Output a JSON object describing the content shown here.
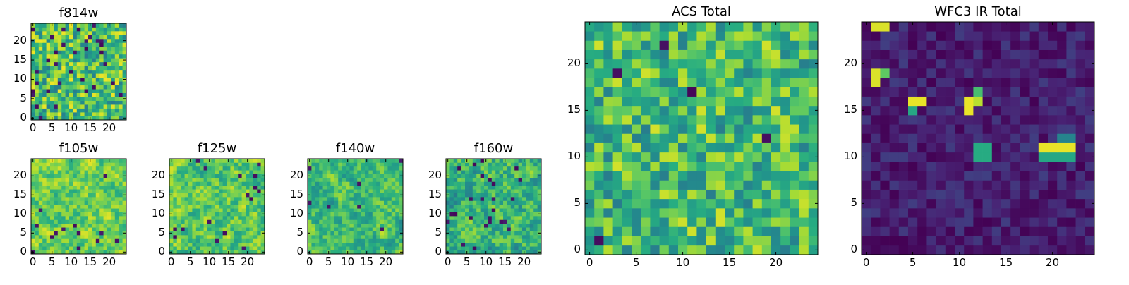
{
  "chart_data": [
    {
      "type": "heatmap",
      "title": "f814w",
      "grid_size": [
        25,
        25
      ],
      "colormap": "viridis",
      "xlim": [
        -0.5,
        24.5
      ],
      "ylim": [
        -0.5,
        24.5
      ],
      "xticks": [
        0,
        5,
        10,
        15,
        20
      ],
      "yticks": [
        0,
        5,
        10,
        15,
        20
      ],
      "value_description": "uniform-like noise, mostly green/yellow with scattered dark pixels",
      "seed": 11,
      "mean": 0.7,
      "spread": 0.28,
      "dark_fraction": 0.06,
      "smooth": 0
    },
    {
      "type": "heatmap",
      "title": "f105w",
      "grid_size": [
        25,
        25
      ],
      "colormap": "viridis",
      "xlim": [
        -0.5,
        24.5
      ],
      "ylim": [
        -0.5,
        24.5
      ],
      "xticks": [
        0,
        5,
        10,
        15,
        20
      ],
      "yticks": [
        0,
        5,
        10,
        15,
        20
      ],
      "value_description": "smooth correlated noise, mostly yellow-green with few dark pixels",
      "seed": 23,
      "mean": 0.78,
      "spread": 0.3,
      "dark_fraction": 0.015,
      "smooth": 1
    },
    {
      "type": "heatmap",
      "title": "f125w",
      "grid_size": [
        25,
        25
      ],
      "colormap": "viridis",
      "xlim": [
        -0.5,
        24.5
      ],
      "ylim": [
        -0.5,
        24.5
      ],
      "xticks": [
        0,
        5,
        10,
        15,
        20
      ],
      "yticks": [
        0,
        5,
        10,
        15,
        20
      ],
      "value_description": "smooth correlated noise, yellow-green with dark specks",
      "seed": 37,
      "mean": 0.74,
      "spread": 0.32,
      "dark_fraction": 0.03,
      "smooth": 1
    },
    {
      "type": "heatmap",
      "title": "f140w",
      "grid_size": [
        25,
        25
      ],
      "colormap": "viridis",
      "xlim": [
        -0.5,
        24.5
      ],
      "ylim": [
        -0.5,
        24.5
      ],
      "xticks": [
        0,
        5,
        10,
        15,
        20
      ],
      "yticks": [
        0,
        5,
        10,
        15,
        20
      ],
      "value_description": "smooth correlated noise, green-teal with a few dark pixels",
      "seed": 51,
      "mean": 0.68,
      "spread": 0.3,
      "dark_fraction": 0.01,
      "smooth": 1
    },
    {
      "type": "heatmap",
      "title": "f160w",
      "grid_size": [
        25,
        25
      ],
      "colormap": "viridis",
      "xlim": [
        -0.5,
        24.5
      ],
      "ylim": [
        -0.5,
        24.5
      ],
      "xticks": [
        0,
        5,
        10,
        15,
        20
      ],
      "yticks": [
        0,
        5,
        10,
        15,
        20
      ],
      "value_description": "smooth correlated noise, teal-green with dark specks",
      "seed": 67,
      "mean": 0.66,
      "spread": 0.34,
      "dark_fraction": 0.03,
      "smooth": 1
    },
    {
      "type": "heatmap",
      "title": "ACS Total",
      "grid_size": [
        25,
        25
      ],
      "colormap": "viridis",
      "xlim": [
        -0.5,
        24.5
      ],
      "ylim": [
        -0.5,
        24.5
      ],
      "xticks": [
        0,
        5,
        10,
        15,
        20
      ],
      "yticks": [
        0,
        5,
        10,
        15,
        20
      ],
      "value_description": "pixel noise, mostly green with yellow and scattered dark pixels",
      "seed": 79,
      "mean": 0.68,
      "spread": 0.26,
      "dark_fraction": 0.018,
      "smooth": 0
    },
    {
      "type": "heatmap",
      "title": "WFC3 IR Total",
      "grid_size": [
        25,
        25
      ],
      "colormap": "viridis",
      "xlim": [
        -0.5,
        24.5
      ],
      "ylim": [
        -0.5,
        24.5
      ],
      "xticks": [
        0,
        5,
        10,
        15,
        20
      ],
      "yticks": [
        0,
        5,
        10,
        15,
        20
      ],
      "value_description": "mostly dark purple background with a few bright compact blobs",
      "seed": 97,
      "mean": 0.1,
      "spread": 0.1,
      "dark_fraction": 0.0,
      "smooth": 0,
      "bright_spots": [
        {
          "col": 1,
          "row": 24,
          "width": 2,
          "height": 1,
          "value": 0.95
        },
        {
          "col": 1,
          "row": 19,
          "width": 1,
          "height": 2,
          "value": 0.95
        },
        {
          "col": 2,
          "row": 19,
          "width": 1,
          "height": 1,
          "value": 0.75
        },
        {
          "col": 5,
          "row": 16,
          "width": 2,
          "height": 1,
          "value": 0.97
        },
        {
          "col": 5,
          "row": 15,
          "width": 1,
          "height": 1,
          "value": 0.6
        },
        {
          "col": 11,
          "row": 16,
          "width": 1,
          "height": 2,
          "value": 0.97
        },
        {
          "col": 12,
          "row": 16,
          "width": 1,
          "height": 1,
          "value": 0.9
        },
        {
          "col": 12,
          "row": 17,
          "width": 1,
          "height": 1,
          "value": 0.7
        },
        {
          "col": 12,
          "row": 11,
          "width": 2,
          "height": 2,
          "value": 0.62
        },
        {
          "col": 19,
          "row": 11,
          "width": 4,
          "height": 1,
          "value": 0.97
        },
        {
          "col": 19,
          "row": 10,
          "width": 4,
          "height": 1,
          "value": 0.6
        },
        {
          "col": 21,
          "row": 12,
          "width": 2,
          "height": 1,
          "value": 0.45
        }
      ]
    }
  ]
}
